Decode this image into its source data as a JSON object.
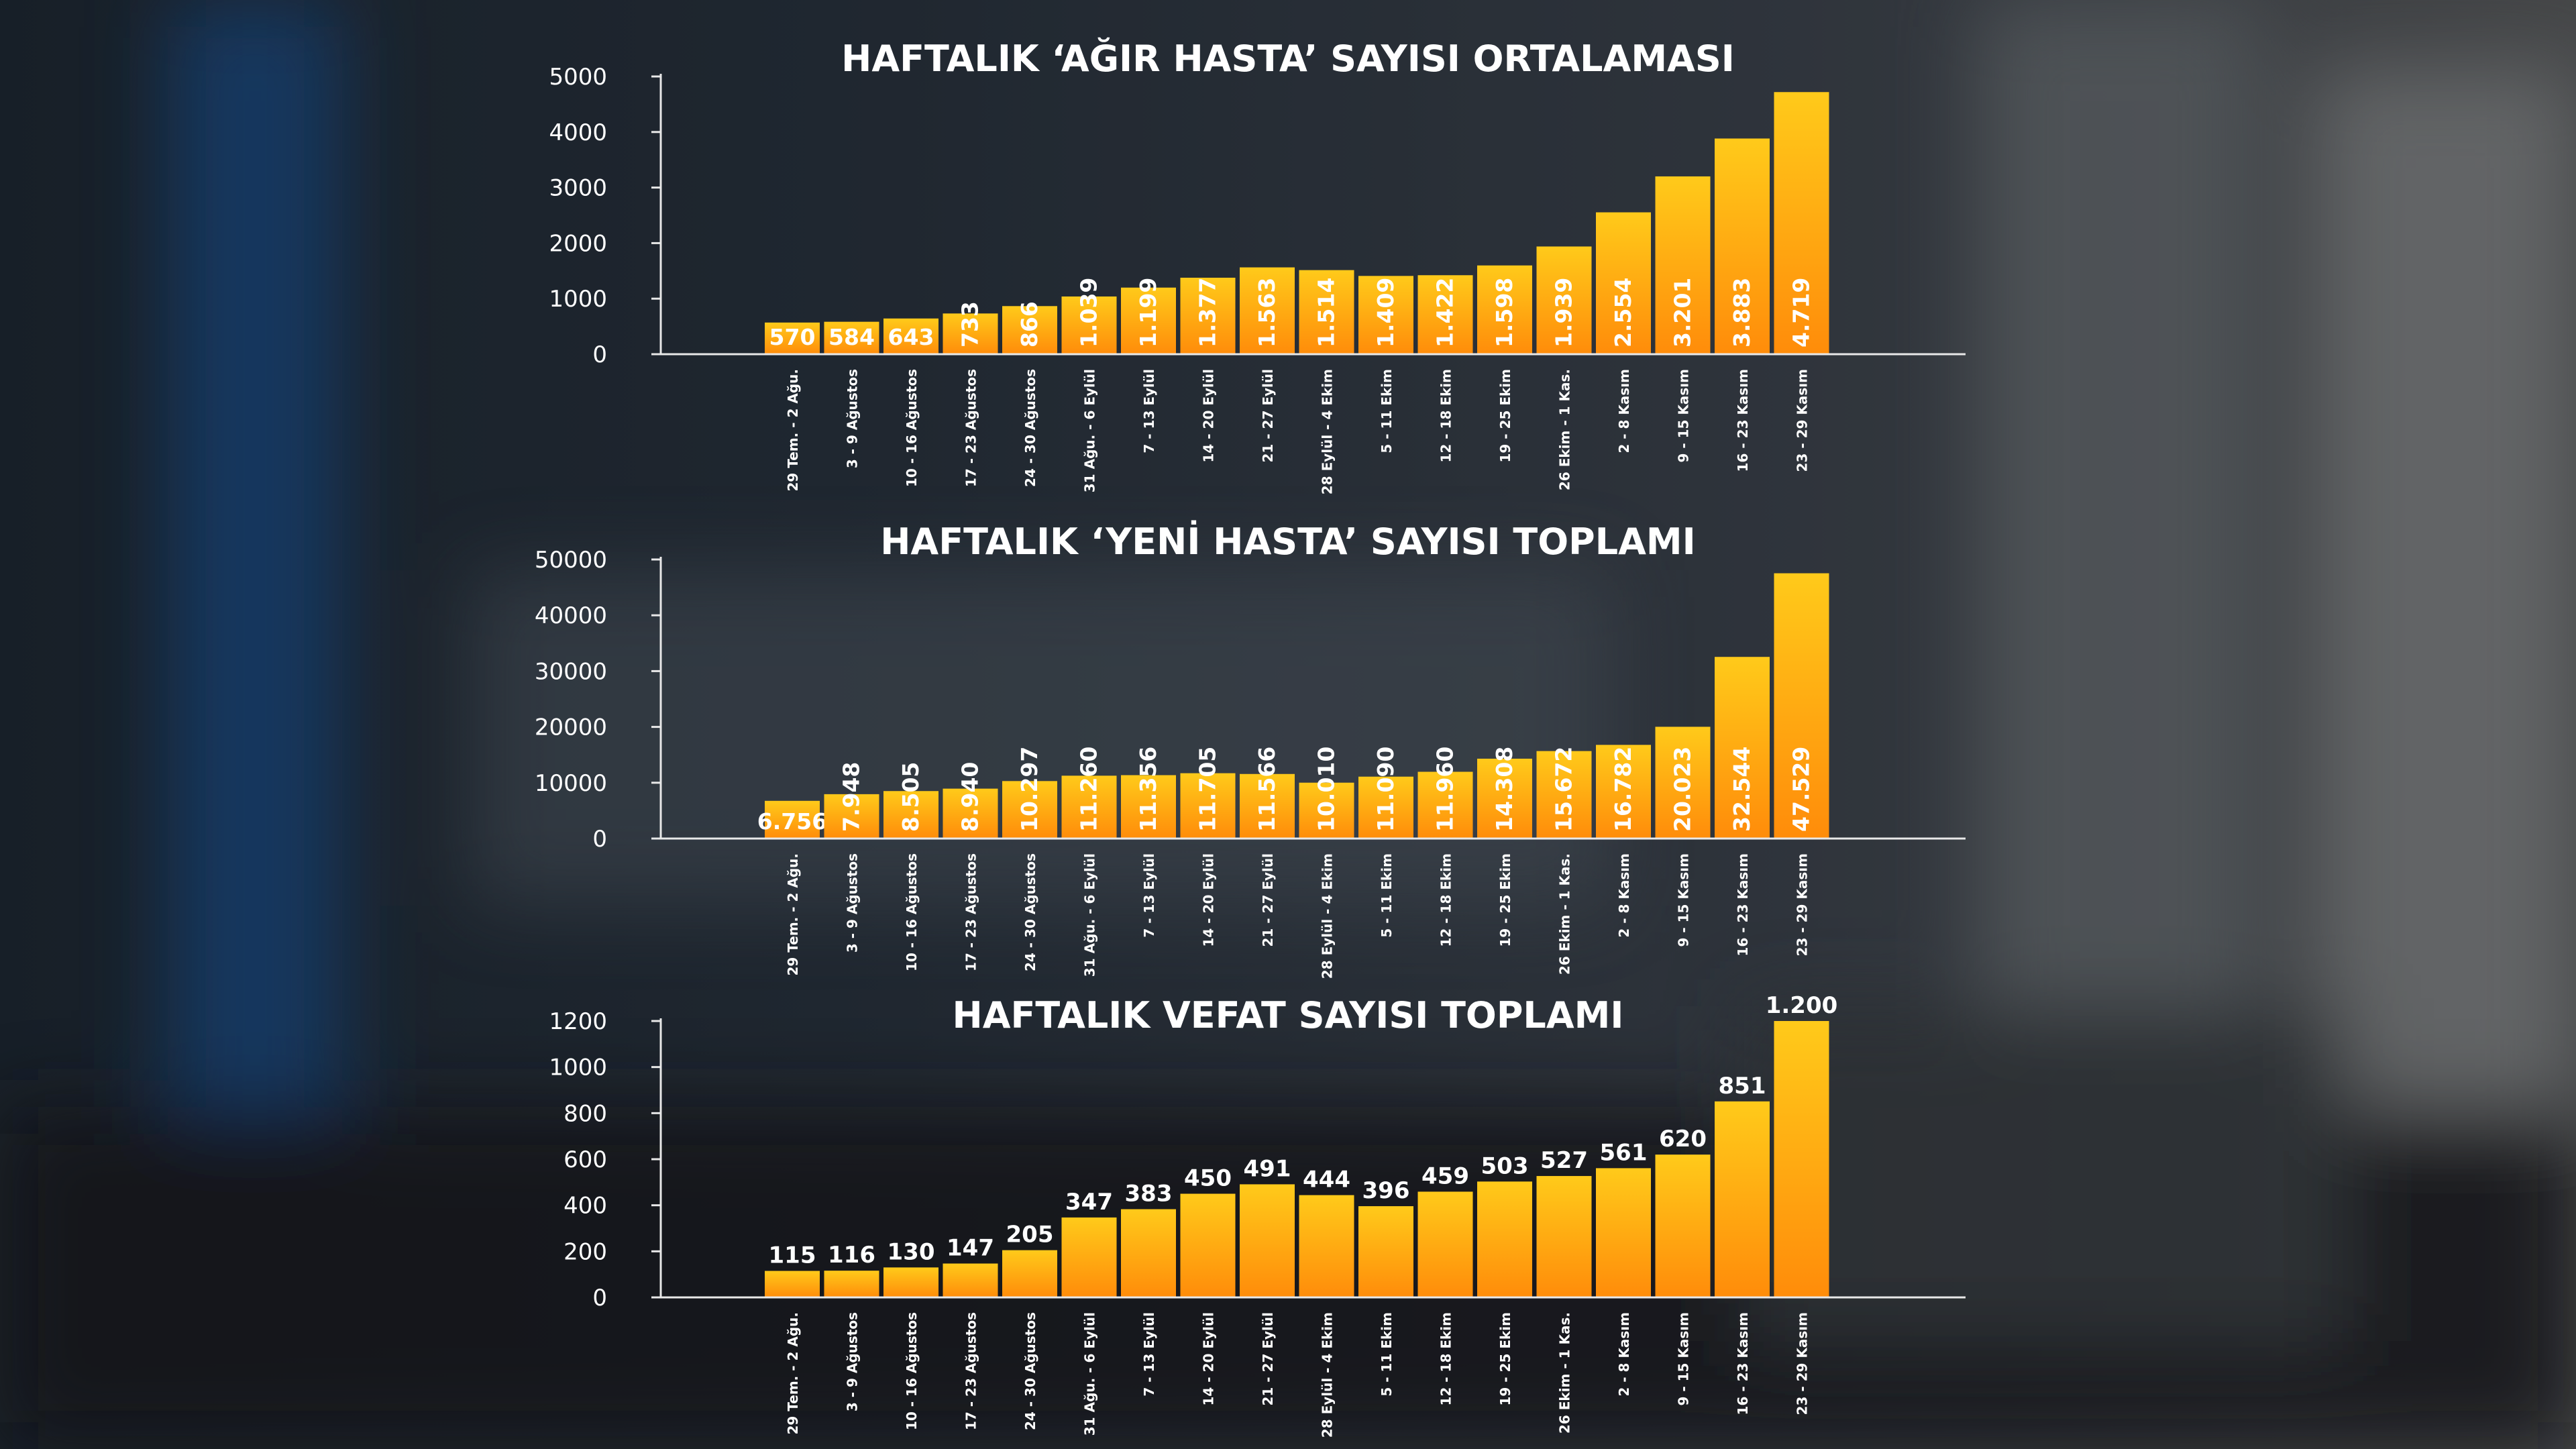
{
  "weeks": [
    "29 Tem. - 2 Ağu.",
    "3 - 9 Ağustos",
    "10 - 16 Ağustos",
    "17 - 23 Ağustos",
    "24 - 30 Ağustos",
    "31 Ağu. - 6 Eylül",
    "7 - 13 Eylül",
    "14 - 20 Eylül",
    "21 - 27 Eylül",
    "28 Eylül - 4 Ekim",
    "5 - 11 Ekim",
    "12 - 18 Ekim",
    "19 - 25 Ekim",
    "26 Ekim - 1 Kas.",
    "2 - 8 Kasım",
    "9 - 15 Kasım",
    "16 - 23 Kasım",
    "23 - 29 Kasım"
  ],
  "colors": {
    "bar_top": "#ffca1a",
    "bar_bottom": "#ff8c0a",
    "axis": "#e8e8e8",
    "text": "#ffffff"
  },
  "chart_data": [
    {
      "type": "bar",
      "title": "HAFTALIK ‘AĞIR HASTA’ SAYISI ORTALAMASI",
      "xlabel": "",
      "ylabel": "",
      "ylim": [
        0,
        5000
      ],
      "yticks": [
        "5000",
        "4000",
        "3000",
        "2000",
        "1000",
        "0"
      ],
      "values": [
        570,
        584,
        643,
        733,
        866,
        1039,
        1199,
        1377,
        1563,
        1514,
        1409,
        1422,
        1598,
        1939,
        2554,
        3201,
        3883,
        4719
      ],
      "labels": [
        "570",
        "584",
        "643",
        "733",
        "866",
        "1.039",
        "1.199",
        "1.377",
        "1.563",
        "1.514",
        "1.409",
        "1.422",
        "1.598",
        "1.939",
        "2.554",
        "3.201",
        "3.883",
        "4.719"
      ],
      "legend": "none",
      "grid": false
    },
    {
      "type": "bar",
      "title": "HAFTALIK ‘YENİ HASTA’ SAYISI TOPLAMI",
      "xlabel": "",
      "ylabel": "",
      "ylim": [
        0,
        50000
      ],
      "yticks": [
        "50000",
        "40000",
        "30000",
        "20000",
        "10000",
        "0"
      ],
      "values": [
        6756,
        7948,
        8505,
        8940,
        10297,
        11260,
        11356,
        11705,
        11566,
        10010,
        11090,
        11960,
        14308,
        15672,
        16782,
        20023,
        32544,
        47529
      ],
      "labels": [
        "6.756",
        "7.948",
        "8.505",
        "8.940",
        "10.297",
        "11.260",
        "11.356",
        "11.705",
        "11.566",
        "10.010",
        "11.090",
        "11.960",
        "14.308",
        "15.672",
        "16.782",
        "20.023",
        "32.544",
        "47.529"
      ],
      "legend": "none",
      "grid": false
    },
    {
      "type": "bar",
      "title": "HAFTALIK VEFAT SAYISI TOPLAMI",
      "xlabel": "",
      "ylabel": "",
      "ylim": [
        0,
        1200
      ],
      "yticks": [
        "1200",
        "1000",
        "800",
        "600",
        "400",
        "200",
        "0"
      ],
      "values": [
        115,
        116,
        130,
        147,
        205,
        347,
        383,
        450,
        491,
        444,
        396,
        459,
        503,
        527,
        561,
        620,
        851,
        1200
      ],
      "labels": [
        "115",
        "116",
        "130",
        "147",
        "205",
        "347",
        "383",
        "450",
        "491",
        "444",
        "396",
        "459",
        "503",
        "527",
        "561",
        "620",
        "851",
        "1.200"
      ],
      "legend": "none",
      "grid": false
    }
  ]
}
